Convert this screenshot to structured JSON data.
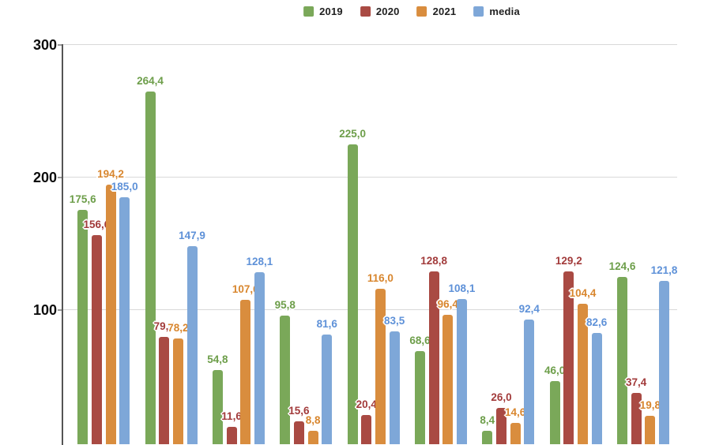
{
  "chart_data": {
    "type": "bar",
    "title": "",
    "xlabel": "",
    "ylabel": "",
    "ylim": [
      0,
      300
    ],
    "y_ticks": [
      {
        "value": 300,
        "label": "300"
      },
      {
        "value": 200,
        "label": "200"
      },
      {
        "value": 100,
        "label": "100"
      }
    ],
    "grid": true,
    "legend_position": "top",
    "decimal_separator": ",",
    "n_groups": 9,
    "series": [
      {
        "name": "2019",
        "color": "#7AA859",
        "label_color": "#6D9E4A",
        "values": [
          175.6,
          264.4,
          54.8,
          95.8,
          225.0,
          68.6,
          8.4,
          46.0,
          124.6
        ],
        "labels": [
          "175,6",
          "264,4",
          "54,8",
          "95,8",
          "225,0",
          "68,6",
          "8,4",
          "46,0",
          "124,6"
        ]
      },
      {
        "name": "2020",
        "color": "#A94A43",
        "label_color": "#A23B3B",
        "values": [
          156.6,
          79.4,
          11.6,
          15.6,
          20.4,
          128.8,
          26.0,
          129.2,
          37.4
        ],
        "labels": [
          "156,6",
          "79,4",
          "11,6",
          "15,6",
          "20,4",
          "128,8",
          "26,0",
          "129,2",
          "37,4"
        ]
      },
      {
        "name": "2021",
        "color": "#D98D3E",
        "label_color": "#D8862E",
        "values": [
          194.2,
          78.2,
          107.6,
          8.8,
          116.0,
          96.4,
          14.6,
          104.4,
          19.8
        ],
        "labels": [
          "194,2",
          "78,2",
          "107,6",
          "8,8",
          "116,0",
          "96,4",
          "14,6",
          "104,4",
          "19,8"
        ]
      },
      {
        "name": "media",
        "color": "#7EA7D8",
        "label_color": "#5E91D8",
        "values": [
          185.0,
          147.9,
          128.1,
          81.6,
          83.5,
          108.1,
          92.4,
          82.6,
          121.8
        ],
        "labels": [
          "185,0",
          "147,9",
          "128,1",
          "81,6",
          "83,5",
          "108,1",
          "92,4",
          "82,6",
          "121,8"
        ]
      }
    ]
  }
}
